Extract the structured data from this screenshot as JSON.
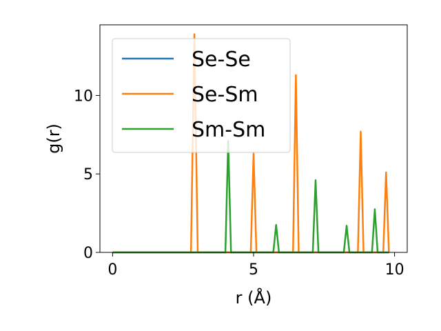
{
  "chart_data": {
    "type": "line",
    "title": "",
    "xlabel": "r (Å)",
    "ylabel": "g(r)",
    "xlim": [
      -0.45,
      10.45
    ],
    "ylim": [
      0,
      14.5
    ],
    "xticks": [
      0,
      5,
      10
    ],
    "yticks": [
      0,
      5,
      10
    ],
    "grid": false,
    "legend_placement": "top-left",
    "series": [
      {
        "name": "Se-Se",
        "color": "#1f77b4",
        "x": [
          0,
          9.8
        ],
        "y": [
          0,
          0
        ]
      },
      {
        "name": "Se-Sm",
        "color": "#ff7f0e",
        "x": [
          0,
          2.78,
          2.9,
          3.02,
          4.9,
          5.0,
          5.1,
          6.4,
          6.5,
          6.6,
          8.7,
          8.8,
          8.9,
          9.6,
          9.7,
          9.8
        ],
        "y": [
          0,
          0,
          13.9,
          0,
          0,
          6.3,
          0,
          0,
          11.3,
          0,
          0,
          7.7,
          0,
          0,
          5.1,
          0
        ]
      },
      {
        "name": "Sm-Sm",
        "color": "#2ca02c",
        "x": [
          0,
          4.0,
          4.1,
          4.2,
          5.7,
          5.8,
          5.9,
          7.1,
          7.2,
          7.3,
          8.2,
          8.3,
          8.4,
          9.2,
          9.3,
          9.4,
          9.8
        ],
        "y": [
          0,
          0,
          7.1,
          0,
          0,
          1.75,
          0,
          0,
          4.6,
          0,
          0,
          1.7,
          0,
          0,
          2.75,
          0,
          0
        ]
      }
    ]
  }
}
